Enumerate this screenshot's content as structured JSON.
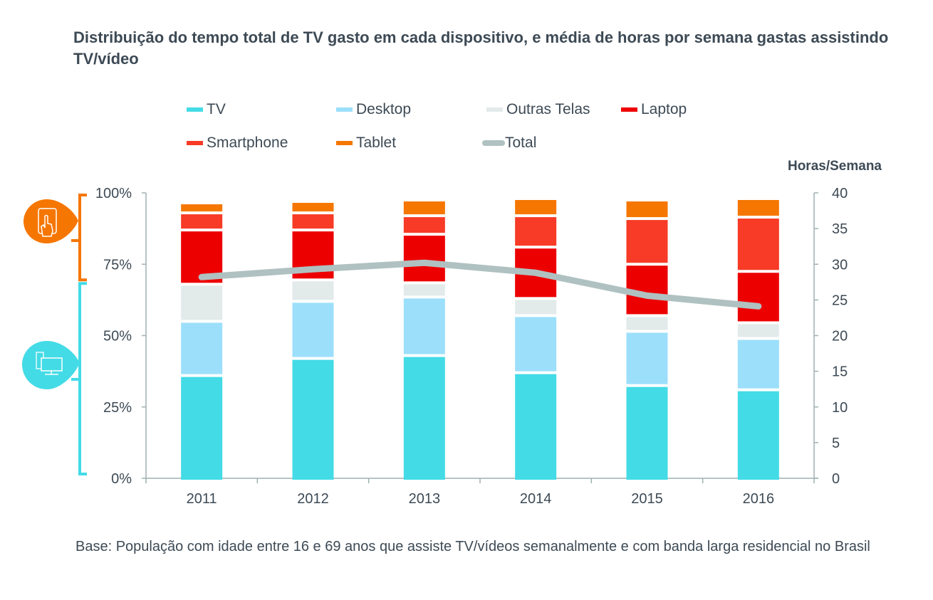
{
  "title": "Distribuição do tempo total de TV gasto em cada dispositivo, e média de horas por semana gastas assistindo TV/vídeo",
  "footnote": "Base: População com idade entre 16 e 69 anos que assiste TV/vídeos semanalmente e com banda larga residencial no Brasil",
  "icons": {
    "mobile": "tablet-touch-icon",
    "fixed": "desktop-computer-icon"
  },
  "chart_data": {
    "type": "bar",
    "stacked": true,
    "title": "Distribuição do tempo total de TV gasto em cada dispositivo, e média de horas por semana gastas assistindo TV/vídeo",
    "xlabel": "",
    "ylabel": "",
    "y2label": "Horas/Semana",
    "categories": [
      "2011",
      "2012",
      "2013",
      "2014",
      "2015",
      "2016"
    ],
    "ylim": [
      0,
      100
    ],
    "y2lim": [
      0,
      40
    ],
    "yticks": [
      "0%",
      "25%",
      "50%",
      "75%",
      "100%"
    ],
    "y2ticks": [
      "0",
      "5",
      "10",
      "15",
      "20",
      "25",
      "30",
      "35",
      "40"
    ],
    "grid": false,
    "legend_position": "top",
    "series": [
      {
        "name": "TV",
        "color": "#43dbe6",
        "axis": "left",
        "kind": "bar",
        "values": [
          36,
          42,
          43,
          37,
          32.5,
          31
        ]
      },
      {
        "name": "Desktop",
        "color": "#9cdffb",
        "axis": "left",
        "kind": "bar",
        "values": [
          19,
          20,
          20.5,
          20,
          19,
          18
        ]
      },
      {
        "name": "Outras Telas",
        "color": "#e3eaea",
        "axis": "left",
        "kind": "bar",
        "values": [
          13,
          7.5,
          5,
          6,
          5.5,
          5.5
        ]
      },
      {
        "name": "Laptop",
        "color": "#ed0000",
        "axis": "left",
        "kind": "bar",
        "values": [
          19,
          17.5,
          17,
          18,
          18,
          18
        ]
      },
      {
        "name": "Smartphone",
        "color": "#f73b26",
        "axis": "left",
        "kind": "bar",
        "values": [
          6,
          6,
          6.5,
          11,
          16,
          19
        ]
      },
      {
        "name": "Tablet",
        "color": "#f57600",
        "axis": "left",
        "kind": "bar",
        "values": [
          3.5,
          4,
          5.5,
          6,
          6.5,
          6.5
        ]
      },
      {
        "name": "Total",
        "color": "#b0c1c1",
        "axis": "right",
        "kind": "line",
        "values": [
          28.2,
          29.3,
          30.2,
          28.8,
          25.6,
          24.1
        ]
      }
    ],
    "annotations": [
      {
        "type": "bracket",
        "label": "mobile-devices",
        "color": "#f57600",
        "range": [
          69,
          100
        ]
      },
      {
        "type": "bracket",
        "label": "fixed-screens",
        "color": "#43dbe6",
        "range": [
          0,
          69
        ]
      }
    ]
  }
}
